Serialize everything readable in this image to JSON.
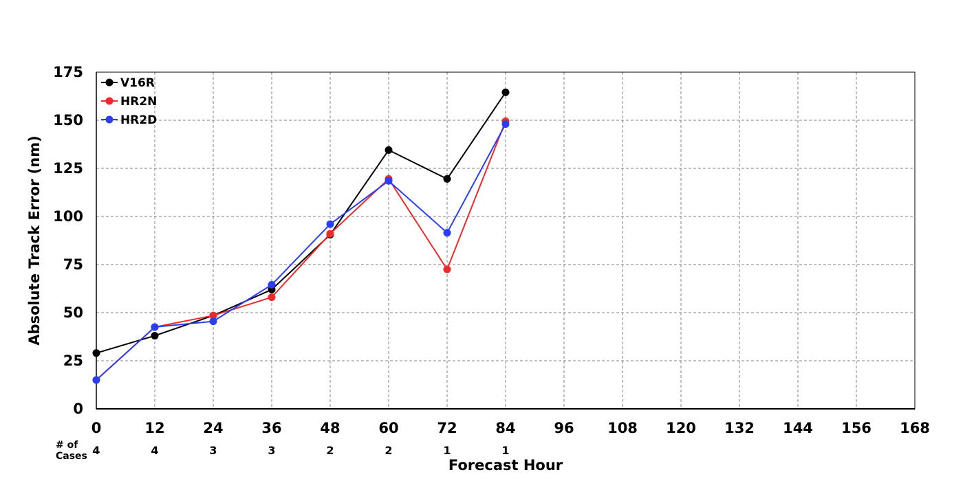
{
  "chart_data": {
    "type": "line",
    "title": "",
    "xlabel": "Forecast Hour",
    "ylabel": "Absolute Track Error (nm)",
    "xlim": [
      0,
      168
    ],
    "ylim": [
      0,
      175
    ],
    "xticks": [
      0,
      12,
      24,
      36,
      48,
      60,
      72,
      84,
      96,
      108,
      120,
      132,
      144,
      156,
      168
    ],
    "yticks": [
      0,
      25,
      50,
      75,
      100,
      125,
      150,
      175
    ],
    "grid": true,
    "legend_position": "top-left",
    "series": [
      {
        "name": "V16R",
        "color": "#000000",
        "x": [
          0,
          12,
          24,
          36,
          48,
          60,
          72,
          84
        ],
        "y": [
          29,
          38,
          48.5,
          62,
          90.5,
          134.5,
          119.5,
          164.5
        ]
      },
      {
        "name": "HR2N",
        "color": "#ee2a2a",
        "x": [
          0,
          12,
          24,
          36,
          48,
          60,
          72,
          84
        ],
        "y": [
          15,
          42.5,
          48.5,
          58,
          91,
          119.5,
          72.5,
          149.5
        ]
      },
      {
        "name": "HR2D",
        "color": "#2b3df5",
        "x": [
          0,
          12,
          24,
          36,
          48,
          60,
          72,
          84
        ],
        "y": [
          15,
          42.5,
          45.5,
          64.5,
          96,
          118.5,
          91.5,
          148
        ]
      }
    ],
    "cases": {
      "label_line1": "# of",
      "label_line2": "Cases",
      "x": [
        0,
        12,
        24,
        36,
        48,
        60,
        72,
        84
      ],
      "values": [
        "4",
        "4",
        "3",
        "3",
        "2",
        "2",
        "1",
        "1"
      ]
    }
  }
}
